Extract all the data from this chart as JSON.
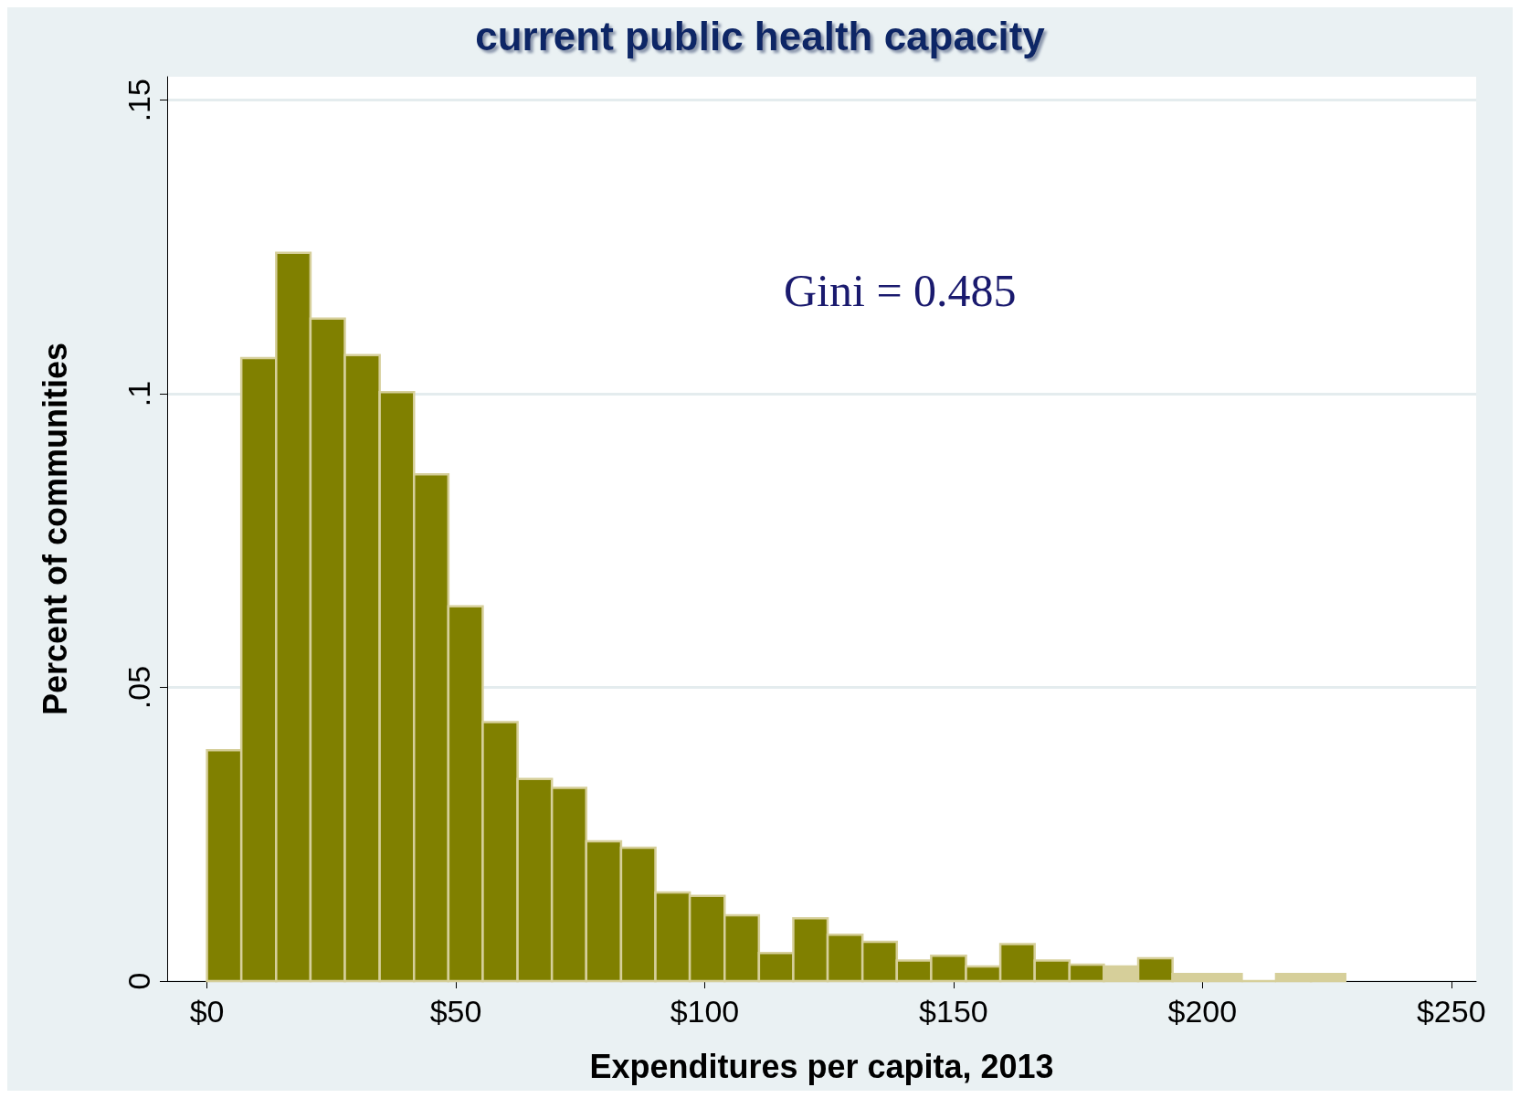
{
  "chart_data": {
    "type": "histogram",
    "title": "current public health capacity",
    "xlabel": "Expenditures per capita, 2013",
    "ylabel": "Percent of communities",
    "bins": [
      0,
      6.9,
      13.9,
      20.8,
      27.7,
      34.7,
      41.6,
      48.5,
      55.4,
      62.4,
      69.3,
      76.2,
      83.2,
      90.1,
      97.0,
      104.0,
      110.9,
      117.8,
      124.7,
      131.7,
      138.6,
      145.5,
      152.5,
      159.4,
      166.3,
      173.3,
      180.2,
      187.1,
      194.0,
      201.0,
      207.9,
      214.8,
      221.8,
      228.7
    ],
    "values": [
      0.0393,
      0.1061,
      0.124,
      0.1128,
      0.1066,
      0.1003,
      0.0863,
      0.0638,
      0.0441,
      0.0344,
      0.0329,
      0.0238,
      0.0227,
      0.0151,
      0.0145,
      0.0112,
      0.0048,
      0.0107,
      0.0079,
      0.0067,
      0.0035,
      0.0043,
      0.0025,
      0.0063,
      0.0035,
      0.0028,
      0.0025,
      0.0039,
      0.0012,
      0.0012,
      0,
      0.0012,
      0.0012
    ],
    "colors": [
      "#808000",
      "#808000",
      "#808000",
      "#808000",
      "#808000",
      "#808000",
      "#808000",
      "#808000",
      "#808000",
      "#808000",
      "#808000",
      "#808000",
      "#808000",
      "#808000",
      "#808000",
      "#808000",
      "#808000",
      "#808000",
      "#808000",
      "#808000",
      "#808000",
      "#808000",
      "#808000",
      "#808000",
      "#808000",
      "#808000",
      "#d6cf9a",
      "#808000",
      "#d6cf9a",
      "#d6cf9a",
      "#d6cf9a",
      "#d6cf9a",
      "#d6cf9a"
    ],
    "xlim": [
      -8,
      255
    ],
    "xticks": [
      {
        "value": 0,
        "label": "$0"
      },
      {
        "value": 50,
        "label": "$50"
      },
      {
        "value": 100,
        "label": "$100"
      },
      {
        "value": 150,
        "label": "$150"
      },
      {
        "value": 200,
        "label": "$200"
      },
      {
        "value": 250,
        "label": "$250"
      }
    ],
    "ylim": [
      0,
      0.154
    ],
    "yticks": [
      {
        "value": 0,
        "label": "0"
      },
      {
        "value": 0.05,
        "label": ".05"
      },
      {
        "value": 0.1,
        "label": ".1"
      },
      {
        "value": 0.15,
        "label": ".15"
      }
    ],
    "grid": "y",
    "annotations": [
      "Gini = 0.485"
    ]
  }
}
